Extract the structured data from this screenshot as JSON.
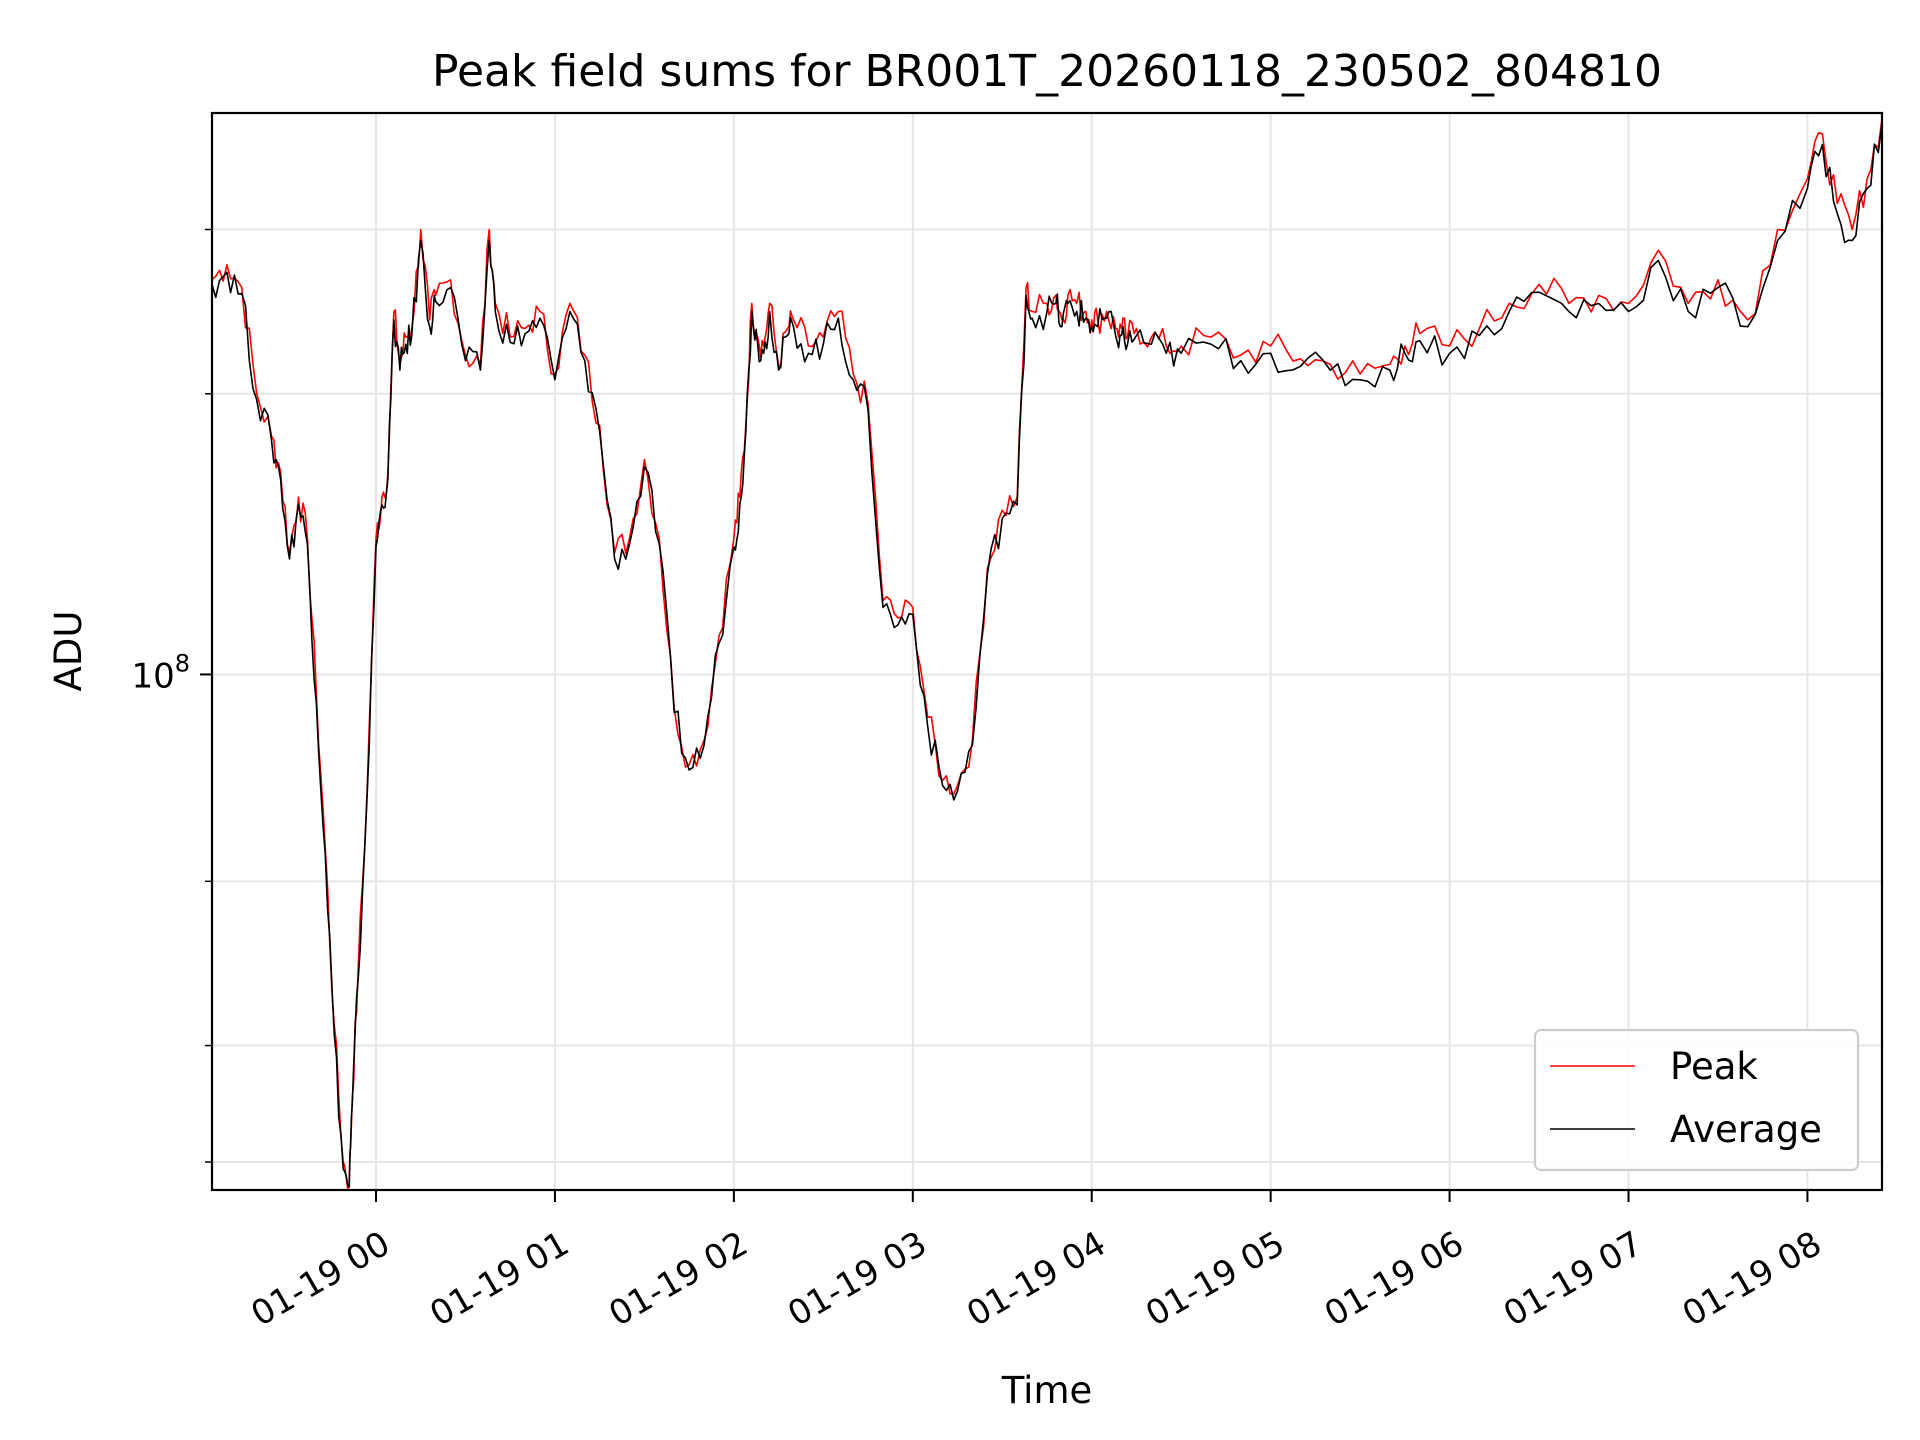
{
  "chart_data": {
    "type": "line",
    "title": "Peak field sums for BR001T_20260118_230502_804810",
    "xlabel": "Time",
    "ylabel": "ADU",
    "x_ticks": [
      "01-19 00",
      "01-19 01",
      "01-19 02",
      "01-19 03",
      "01-19 04",
      "01-19 05",
      "01-19 06",
      "01-19 07",
      "01-19 08"
    ],
    "y_tick": {
      "base": "10",
      "exp": "8"
    },
    "y_scale": "log",
    "ylim": [
      28000000,
      400000000
    ],
    "xlim": [
      "2026-01-18 23:05",
      "2026-01-19 08:25"
    ],
    "grid": true,
    "legend_position": "lower right",
    "colors": {
      "peak": "#ff0000",
      "average": "#000000"
    },
    "x": [
      "23:05",
      "23:10",
      "23:15",
      "23:20",
      "23:25",
      "23:28",
      "23:31",
      "23:34",
      "23:37",
      "23:40",
      "23:43",
      "23:46",
      "23:49",
      "23:51",
      "23:52",
      "23:54",
      "23:57",
      "00:00",
      "00:02",
      "00:04",
      "00:06",
      "00:08",
      "00:10",
      "00:12",
      "00:15",
      "00:18",
      "00:20",
      "00:25",
      "00:30",
      "00:35",
      "00:38",
      "00:40",
      "00:45",
      "00:50",
      "00:55",
      "01:00",
      "01:05",
      "01:10",
      "01:15",
      "01:20",
      "01:25",
      "01:30",
      "01:35",
      "01:40",
      "01:45",
      "01:50",
      "01:55",
      "02:00",
      "02:02",
      "02:04",
      "02:06",
      "02:08",
      "02:10",
      "02:12",
      "02:15",
      "02:18",
      "02:20",
      "02:25",
      "02:30",
      "02:35",
      "02:40",
      "02:45",
      "02:50",
      "02:55",
      "03:00",
      "03:05",
      "03:10",
      "03:15",
      "03:20",
      "03:25",
      "03:30",
      "03:35",
      "03:38",
      "03:40",
      "03:45",
      "03:48",
      "03:50",
      "03:52",
      "03:55",
      "03:58",
      "04:00",
      "04:02",
      "04:05",
      "04:08",
      "04:10",
      "04:12",
      "04:15",
      "04:20",
      "04:25",
      "04:30",
      "04:40",
      "04:50",
      "05:00",
      "05:10",
      "05:20",
      "05:30",
      "05:40",
      "05:45",
      "05:50",
      "06:00",
      "06:10",
      "06:20",
      "06:30",
      "06:40",
      "06:50",
      "07:00",
      "07:10",
      "07:20",
      "07:30",
      "07:40",
      "07:50",
      "08:00",
      "08:05",
      "08:10",
      "08:15",
      "08:20",
      "08:25"
    ],
    "series": [
      {
        "name": "Peak",
        "values": [
          265000000,
          275000000,
          260000000,
          200000000,
          180000000,
          165000000,
          135000000,
          155000000,
          140000000,
          95000000,
          65000000,
          42000000,
          30000000,
          28500000,
          35000000,
          48000000,
          75000000,
          140000000,
          155000000,
          165000000,
          245000000,
          215000000,
          230000000,
          235000000,
          300000000,
          240000000,
          255000000,
          265000000,
          220000000,
          215000000,
          300000000,
          250000000,
          230000000,
          235000000,
          245000000,
          210000000,
          250000000,
          220000000,
          185000000,
          135000000,
          140000000,
          170000000,
          140000000,
          92000000,
          80000000,
          85000000,
          110000000,
          140000000,
          155000000,
          185000000,
          250000000,
          230000000,
          225000000,
          250000000,
          215000000,
          235000000,
          240000000,
          225000000,
          230000000,
          245000000,
          210000000,
          195000000,
          120000000,
          115000000,
          118000000,
          90000000,
          77000000,
          76000000,
          85000000,
          130000000,
          150000000,
          155000000,
          260000000,
          245000000,
          250000000,
          255000000,
          240000000,
          255000000,
          250000000,
          245000000,
          240000000,
          240000000,
          245000000,
          235000000,
          235000000,
          230000000,
          235000000,
          230000000,
          225000000,
          225000000,
          230000000,
          220000000,
          225000000,
          218000000,
          215000000,
          210000000,
          215000000,
          225000000,
          232000000,
          225000000,
          235000000,
          250000000,
          262000000,
          250000000,
          255000000,
          250000000,
          285000000,
          250000000,
          265000000,
          240000000,
          300000000,
          340000000,
          380000000,
          320000000,
          300000000,
          340000000,
          395000000
        ]
      },
      {
        "name": "Average",
        "values": [
          262000000,
          270000000,
          256000000,
          197000000,
          178000000,
          162000000,
          133000000,
          152000000,
          138000000,
          93000000,
          64000000,
          41000000,
          29500000,
          28200000,
          34500000,
          47000000,
          74000000,
          137000000,
          152000000,
          162000000,
          240000000,
          212000000,
          226000000,
          231000000,
          292000000,
          236000000,
          251000000,
          260000000,
          217000000,
          212000000,
          292000000,
          245000000,
          227000000,
          232000000,
          241000000,
          207000000,
          245000000,
          217000000,
          182000000,
          133000000,
          138000000,
          167000000,
          138000000,
          91000000,
          79000000,
          84000000,
          108000000,
          137000000,
          152000000,
          182000000,
          245000000,
          226000000,
          221000000,
          245000000,
          212000000,
          231000000,
          236000000,
          221000000,
          226000000,
          241000000,
          207000000,
          192000000,
          118000000,
          113000000,
          116000000,
          88000000,
          76000000,
          75000000,
          84000000,
          128000000,
          147000000,
          152000000,
          255000000,
          241000000,
          245000000,
          250000000,
          236000000,
          250000000,
          245000000,
          241000000,
          236000000,
          236000000,
          241000000,
          231000000,
          231000000,
          226000000,
          231000000,
          226000000,
          221000000,
          221000000,
          226000000,
          217000000,
          221000000,
          214000000,
          212000000,
          207000000,
          212000000,
          221000000,
          228000000,
          221000000,
          231000000,
          245000000,
          257000000,
          245000000,
          250000000,
          245000000,
          278000000,
          245000000,
          260000000,
          236000000,
          292000000,
          332000000,
          370000000,
          312000000,
          292000000,
          332000000,
          390000000
        ]
      }
    ]
  }
}
